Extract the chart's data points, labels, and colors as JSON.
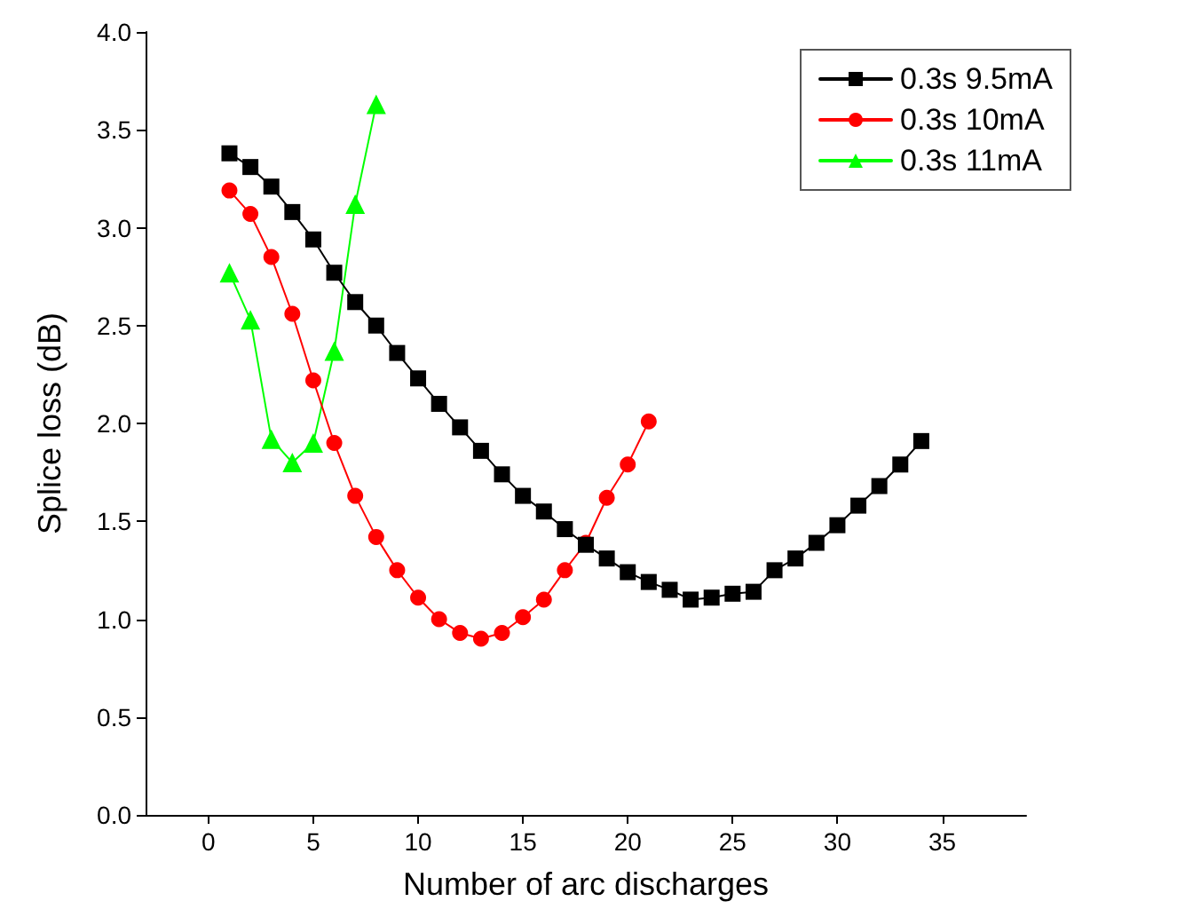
{
  "chart_data": {
    "type": "line",
    "xlabel": "Number of arc discharges",
    "ylabel": "Splice loss (dB)",
    "xlim": [
      -3,
      39
    ],
    "xticks": [
      0,
      5,
      10,
      15,
      20,
      25,
      30,
      35
    ],
    "ylim": [
      0,
      4
    ],
    "yticks": [
      {
        "value": 0,
        "label": "0.0"
      },
      {
        "value": 0.5,
        "label": "0.5"
      },
      {
        "value": 1,
        "label": "1.0"
      },
      {
        "value": 1.5,
        "label": "1.5"
      },
      {
        "value": 2,
        "label": "2.0"
      },
      {
        "value": 2.5,
        "label": "2.5"
      },
      {
        "value": 3,
        "label": "3.0"
      },
      {
        "value": 3.5,
        "label": "3.5"
      },
      {
        "value": 4,
        "label": "4.0"
      }
    ],
    "grid": false,
    "legend": "top right",
    "line_style": "solid",
    "series": [
      {
        "name": "0.3s 9.5mA",
        "color": "#000000",
        "marker": "square",
        "x": [
          1,
          2,
          3,
          4,
          5,
          6,
          7,
          8,
          9,
          10,
          11,
          12,
          13,
          14,
          15,
          16,
          17,
          18,
          19,
          20,
          21,
          22,
          23,
          24,
          25,
          26,
          27,
          28,
          29,
          30,
          31,
          32,
          33,
          34
        ],
        "values": [
          3.38,
          3.31,
          3.21,
          3.08,
          2.94,
          2.77,
          2.62,
          2.5,
          2.36,
          2.23,
          2.1,
          1.98,
          1.86,
          1.74,
          1.63,
          1.55,
          1.46,
          1.38,
          1.31,
          1.24,
          1.19,
          1.15,
          1.1,
          1.11,
          1.13,
          1.14,
          1.25,
          1.31,
          1.39,
          1.48,
          1.58,
          1.68,
          1.79,
          1.91
        ]
      },
      {
        "name": "0.3s 10mA",
        "color": "#ff0000",
        "marker": "circle",
        "x": [
          1,
          2,
          3,
          4,
          5,
          6,
          7,
          8,
          9,
          10,
          11,
          12,
          13,
          14,
          15,
          16,
          17,
          18,
          19,
          20,
          21
        ],
        "values": [
          3.19,
          3.07,
          2.85,
          2.56,
          2.22,
          1.9,
          1.63,
          1.42,
          1.25,
          1.11,
          1.0,
          0.93,
          0.9,
          0.93,
          1.01,
          1.1,
          1.25,
          1.39,
          1.62,
          1.79,
          2.01
        ]
      },
      {
        "name": "0.3s 11mA",
        "color": "#00ff00",
        "marker": "triangle",
        "x": [
          1,
          2,
          3,
          4,
          5,
          6,
          7,
          8
        ],
        "values": [
          2.77,
          2.53,
          1.92,
          1.8,
          1.9,
          2.37,
          3.12,
          3.63
        ]
      }
    ]
  }
}
